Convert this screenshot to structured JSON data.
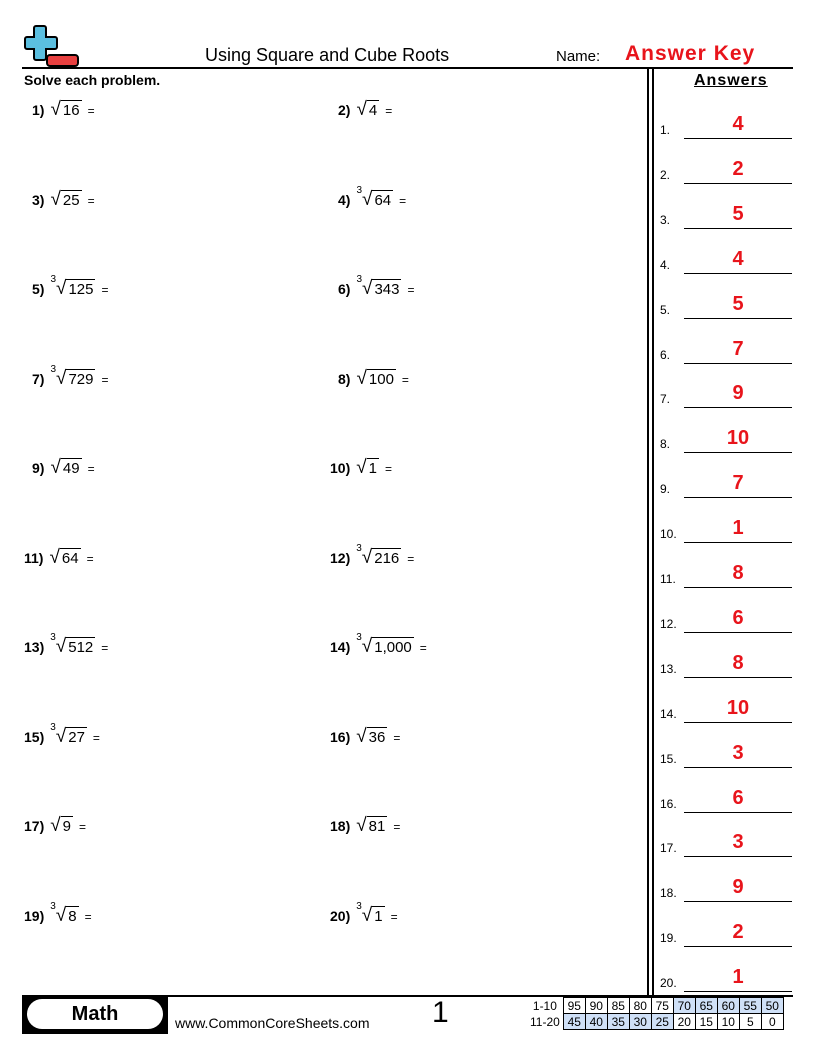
{
  "header": {
    "title": "Using Square and Cube Roots",
    "name_label": "Name:",
    "name_value": "Answer Key",
    "instructions": "Solve each problem.",
    "answers_heading": "Answers"
  },
  "colors": {
    "accent": "#e8141b",
    "logo_blue": "#5bbfe0",
    "logo_red": "#e84040",
    "score_highlight": "#cfe0f7"
  },
  "problems": [
    {
      "num": "1)",
      "index": "",
      "radicand": "16",
      "eq": "="
    },
    {
      "num": "2)",
      "index": "",
      "radicand": "4",
      "eq": "="
    },
    {
      "num": "3)",
      "index": "",
      "radicand": "25",
      "eq": "="
    },
    {
      "num": "4)",
      "index": "3",
      "radicand": "64",
      "eq": "="
    },
    {
      "num": "5)",
      "index": "3",
      "radicand": "125",
      "eq": "="
    },
    {
      "num": "6)",
      "index": "3",
      "radicand": "343",
      "eq": "="
    },
    {
      "num": "7)",
      "index": "3",
      "radicand": "729",
      "eq": "="
    },
    {
      "num": "8)",
      "index": "",
      "radicand": "100",
      "eq": "="
    },
    {
      "num": "9)",
      "index": "",
      "radicand": "49",
      "eq": "="
    },
    {
      "num": "10)",
      "index": "",
      "radicand": "1",
      "eq": "="
    },
    {
      "num": "11)",
      "index": "",
      "radicand": "64",
      "eq": "="
    },
    {
      "num": "12)",
      "index": "3",
      "radicand": "216",
      "eq": "="
    },
    {
      "num": "13)",
      "index": "3",
      "radicand": "512",
      "eq": "="
    },
    {
      "num": "14)",
      "index": "3",
      "radicand": "1,000",
      "eq": "="
    },
    {
      "num": "15)",
      "index": "3",
      "radicand": "27",
      "eq": "="
    },
    {
      "num": "16)",
      "index": "",
      "radicand": "36",
      "eq": "="
    },
    {
      "num": "17)",
      "index": "",
      "radicand": "9",
      "eq": "="
    },
    {
      "num": "18)",
      "index": "",
      "radicand": "81",
      "eq": "="
    },
    {
      "num": "19)",
      "index": "3",
      "radicand": "8",
      "eq": "="
    },
    {
      "num": "20)",
      "index": "3",
      "radicand": "1",
      "eq": "="
    }
  ],
  "answers": [
    {
      "num": "1.",
      "value": "4"
    },
    {
      "num": "2.",
      "value": "2"
    },
    {
      "num": "3.",
      "value": "5"
    },
    {
      "num": "4.",
      "value": "4"
    },
    {
      "num": "5.",
      "value": "5"
    },
    {
      "num": "6.",
      "value": "7"
    },
    {
      "num": "7.",
      "value": "9"
    },
    {
      "num": "8.",
      "value": "10"
    },
    {
      "num": "9.",
      "value": "7"
    },
    {
      "num": "10.",
      "value": "1"
    },
    {
      "num": "11.",
      "value": "8"
    },
    {
      "num": "12.",
      "value": "6"
    },
    {
      "num": "13.",
      "value": "8"
    },
    {
      "num": "14.",
      "value": "10"
    },
    {
      "num": "15.",
      "value": "3"
    },
    {
      "num": "16.",
      "value": "6"
    },
    {
      "num": "17.",
      "value": "3"
    },
    {
      "num": "18.",
      "value": "9"
    },
    {
      "num": "19.",
      "value": "2"
    },
    {
      "num": "20.",
      "value": "1"
    }
  ],
  "footer": {
    "subject": "Math",
    "site": "www.CommonCoreSheets.com",
    "page": "1",
    "score_rows": [
      {
        "label": "1-10",
        "values": [
          "95",
          "90",
          "85",
          "80",
          "75",
          "70",
          "65",
          "60",
          "55",
          "50"
        ],
        "highlighted": [
          false,
          false,
          false,
          false,
          false,
          true,
          true,
          true,
          true,
          true
        ]
      },
      {
        "label": "11-20",
        "values": [
          "45",
          "40",
          "35",
          "30",
          "25",
          "20",
          "15",
          "10",
          "5",
          "0"
        ],
        "highlighted": [
          true,
          true,
          true,
          true,
          true,
          false,
          false,
          false,
          false,
          false
        ]
      }
    ]
  }
}
